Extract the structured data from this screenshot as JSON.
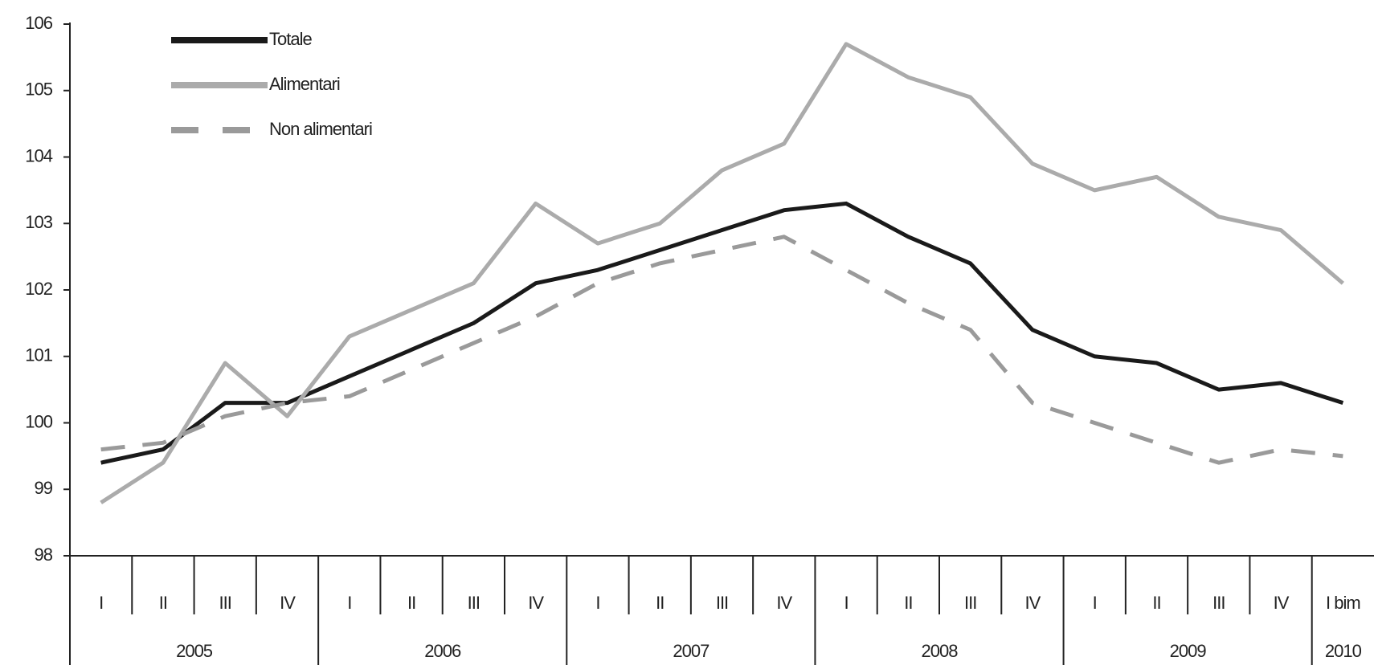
{
  "chart_data": {
    "type": "line",
    "category_groups": [
      {
        "label": "2005",
        "categories": [
          "I",
          "II",
          "III",
          "IV"
        ]
      },
      {
        "label": "2006",
        "categories": [
          "I",
          "II",
          "III",
          "IV"
        ]
      },
      {
        "label": "2007",
        "categories": [
          "I",
          "II",
          "III",
          "IV"
        ]
      },
      {
        "label": "2008",
        "categories": [
          "I",
          "II",
          "III",
          "IV"
        ]
      },
      {
        "label": "2009",
        "categories": [
          "I",
          "II",
          "III",
          "IV"
        ]
      },
      {
        "label": "2010",
        "categories": [
          "I bim"
        ]
      }
    ],
    "series": [
      {
        "name": "Totale",
        "color": "#1a1a1a",
        "dashed": false,
        "values": [
          99.4,
          99.6,
          100.3,
          100.3,
          100.7,
          101.1,
          101.5,
          102.1,
          102.3,
          102.6,
          102.9,
          103.2,
          103.3,
          102.8,
          102.4,
          101.4,
          101.0,
          100.9,
          100.5,
          100.6,
          100.3
        ]
      },
      {
        "name": "Alimentari",
        "color": "#ababab",
        "dashed": false,
        "values": [
          98.8,
          99.4,
          100.9,
          100.1,
          101.3,
          101.7,
          102.1,
          103.3,
          102.7,
          103.0,
          103.8,
          104.2,
          105.7,
          105.2,
          104.9,
          103.9,
          103.5,
          103.7,
          103.1,
          102.9,
          102.1
        ]
      },
      {
        "name": "Non alimentari",
        "color": "#9a9a9a",
        "dashed": true,
        "values": [
          99.6,
          99.7,
          100.1,
          100.3,
          100.4,
          100.8,
          101.2,
          101.6,
          102.1,
          102.4,
          102.6,
          102.8,
          102.3,
          101.8,
          101.4,
          100.3,
          100.0,
          99.7,
          99.4,
          99.6,
          99.5
        ]
      }
    ],
    "ylim": [
      98,
      106
    ],
    "yticks": [
      98,
      99,
      100,
      101,
      102,
      103,
      104,
      105,
      106
    ],
    "legend": "top-left",
    "grid": false
  }
}
